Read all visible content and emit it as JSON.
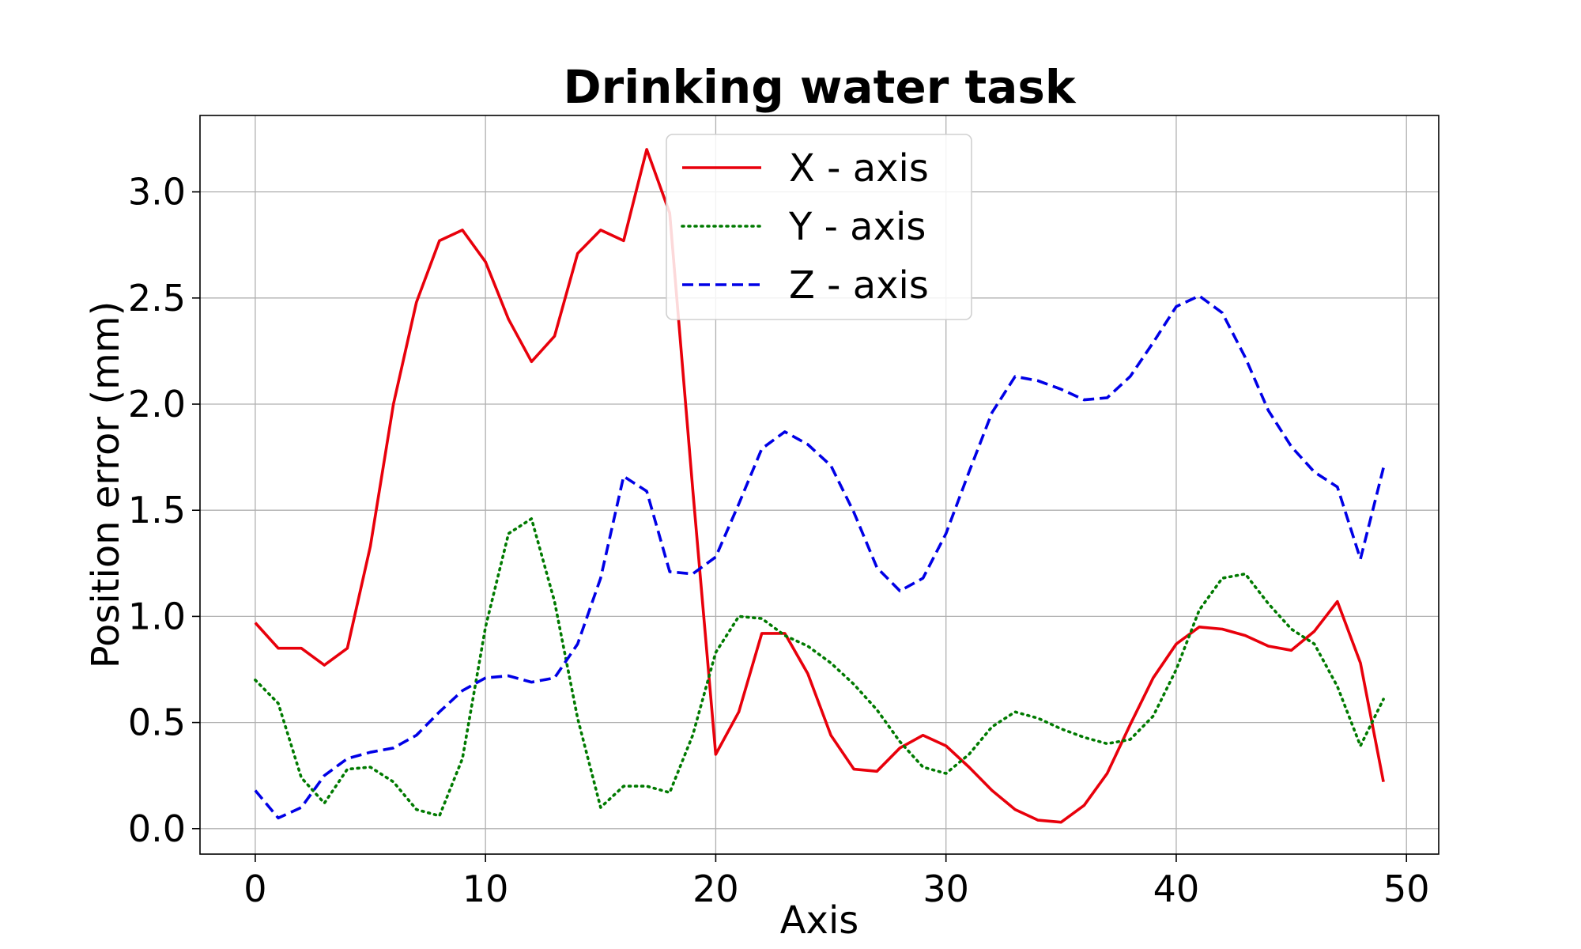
{
  "chart_data": {
    "type": "line",
    "title": "Drinking water task",
    "xlabel": "Axis",
    "ylabel": "Position error (mm)",
    "xlim": [
      -2.4,
      51.4
    ],
    "ylim": [
      -0.12,
      3.36
    ],
    "xticks": [
      0,
      10,
      20,
      30,
      40,
      50
    ],
    "yticks": [
      0.0,
      0.5,
      1.0,
      1.5,
      2.0,
      2.5,
      3.0
    ],
    "xtick_labels": [
      "0",
      "10",
      "20",
      "30",
      "40",
      "50"
    ],
    "ytick_labels": [
      "0.0",
      "0.5",
      "1.0",
      "1.5",
      "2.0",
      "2.5",
      "3.0"
    ],
    "grid": true,
    "legend_position": "top-center",
    "x": [
      0,
      1,
      2,
      3,
      4,
      5,
      6,
      7,
      8,
      9,
      10,
      11,
      12,
      13,
      14,
      15,
      16,
      17,
      18,
      19,
      20,
      21,
      22,
      23,
      24,
      25,
      26,
      27,
      28,
      29,
      30,
      31,
      32,
      33,
      34,
      35,
      36,
      37,
      38,
      39,
      40,
      41,
      42,
      43,
      44,
      45,
      46,
      47,
      48,
      49
    ],
    "series": [
      {
        "name": "X - axis",
        "color": "#e8000b",
        "style": "solid",
        "values": [
          0.97,
          0.85,
          0.85,
          0.77,
          0.85,
          1.33,
          2.0,
          2.48,
          2.77,
          2.82,
          2.67,
          2.4,
          2.2,
          2.32,
          2.71,
          2.82,
          2.77,
          3.2,
          2.9,
          1.6,
          0.35,
          0.55,
          0.92,
          0.92,
          0.73,
          0.44,
          0.28,
          0.27,
          0.38,
          0.44,
          0.39,
          0.29,
          0.18,
          0.09,
          0.04,
          0.03,
          0.11,
          0.26,
          0.49,
          0.71,
          0.87,
          0.95,
          0.94,
          0.91,
          0.86,
          0.84,
          0.93,
          1.07,
          0.78,
          0.22
        ]
      },
      {
        "name": "Y - axis",
        "color": "#007a00",
        "style": "dotted",
        "values": [
          0.7,
          0.59,
          0.24,
          0.12,
          0.28,
          0.29,
          0.22,
          0.09,
          0.06,
          0.33,
          0.95,
          1.39,
          1.46,
          1.07,
          0.52,
          0.1,
          0.2,
          0.2,
          0.17,
          0.44,
          0.83,
          1.0,
          0.99,
          0.91,
          0.86,
          0.78,
          0.68,
          0.56,
          0.41,
          0.29,
          0.26,
          0.35,
          0.48,
          0.55,
          0.52,
          0.47,
          0.43,
          0.4,
          0.42,
          0.53,
          0.75,
          1.03,
          1.18,
          1.2,
          1.06,
          0.94,
          0.87,
          0.67,
          0.39,
          0.61
        ]
      },
      {
        "name": "Z - axis",
        "color": "#0000e6",
        "style": "dashed",
        "values": [
          0.18,
          0.05,
          0.1,
          0.25,
          0.33,
          0.36,
          0.38,
          0.44,
          0.55,
          0.65,
          0.71,
          0.72,
          0.69,
          0.71,
          0.87,
          1.18,
          1.66,
          1.59,
          1.21,
          1.2,
          1.28,
          1.53,
          1.79,
          1.87,
          1.81,
          1.71,
          1.49,
          1.23,
          1.12,
          1.18,
          1.39,
          1.68,
          1.96,
          2.13,
          2.11,
          2.07,
          2.02,
          2.03,
          2.13,
          2.29,
          2.46,
          2.51,
          2.43,
          2.22,
          1.97,
          1.8,
          1.68,
          1.61,
          1.27,
          1.7
        ]
      }
    ]
  }
}
